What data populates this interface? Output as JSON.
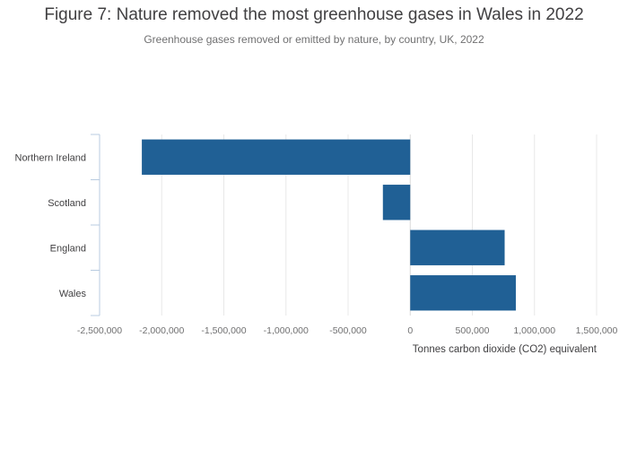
{
  "chart_data": {
    "type": "bar",
    "orientation": "horizontal",
    "title": "Figure 7: Nature removed the most greenhouse gases in Wales in 2022",
    "subtitle": "Greenhouse gases removed or emitted by nature, by country, UK, 2022",
    "categories": [
      "Northern Ireland",
      "Scotland",
      "England",
      "Wales"
    ],
    "values": [
      -2160000,
      -220000,
      760000,
      850000
    ],
    "xlabel": "Tonnes carbon dioxide (CO2) equivalent",
    "ylabel": "",
    "xlim": [
      -2500000,
      1500000
    ],
    "xticks": [
      -2500000,
      -2000000,
      -1500000,
      -1000000,
      -500000,
      0,
      500000,
      1000000,
      1500000
    ],
    "xtick_labels": [
      "-2,500,000",
      "-2,000,000",
      "-1,500,000",
      "-1,000,000",
      "-500,000",
      "0",
      "500,000",
      "1,000,000",
      "1,500,000"
    ],
    "bar_color": "#206095",
    "grid": true
  }
}
